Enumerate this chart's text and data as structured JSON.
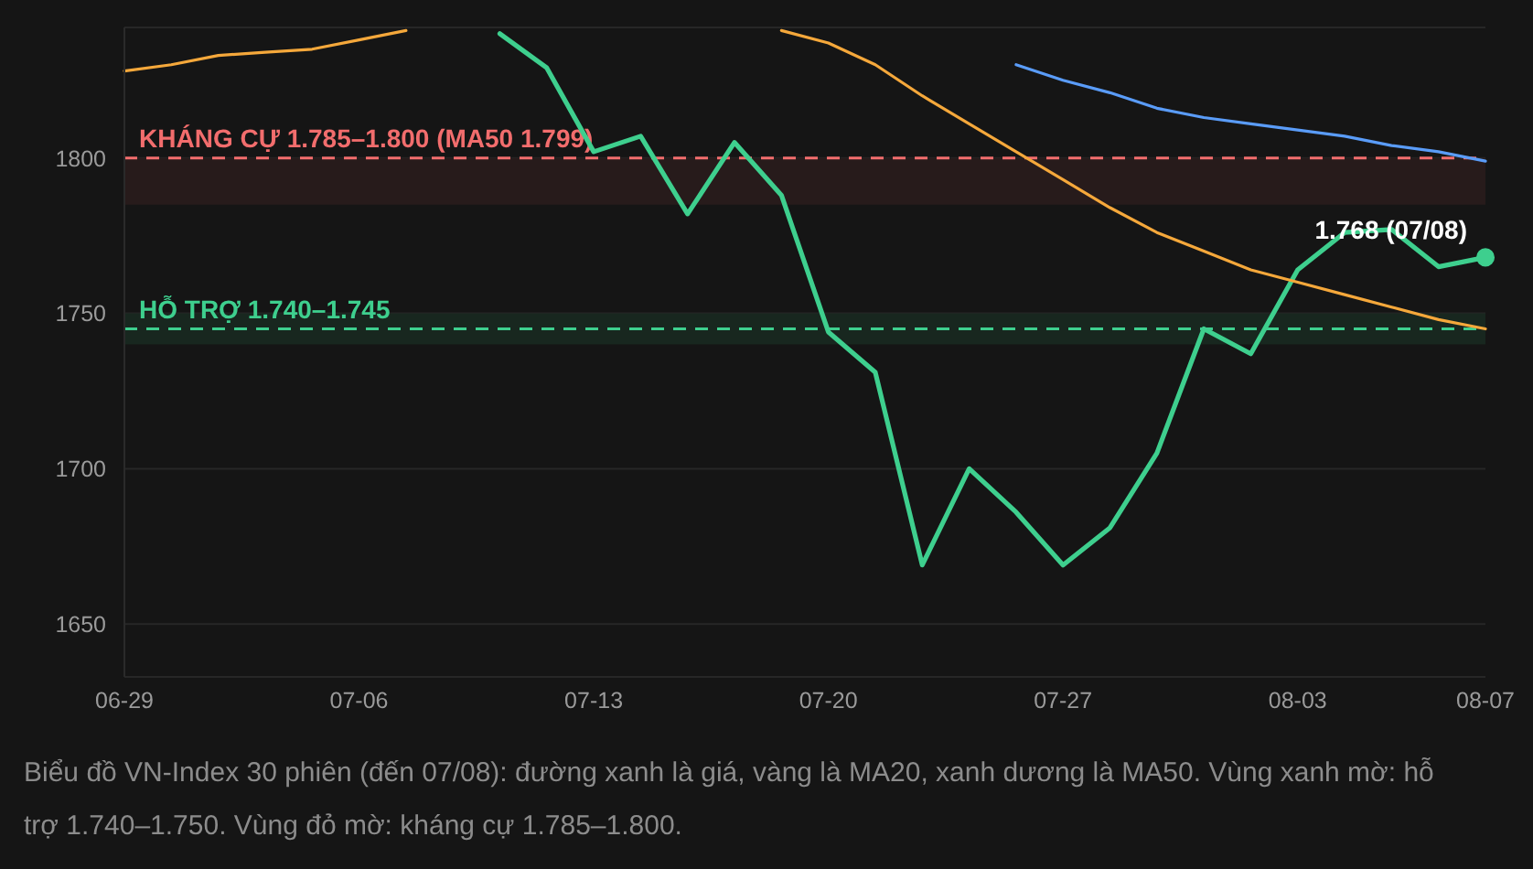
{
  "chart_data": {
    "type": "line",
    "categories": [
      "06-29",
      null,
      null,
      null,
      null,
      "07-06",
      null,
      null,
      null,
      null,
      "07-13",
      null,
      null,
      null,
      null,
      "07-20",
      null,
      null,
      null,
      null,
      "07-27",
      null,
      null,
      null,
      null,
      "08-03",
      null,
      null,
      null,
      "08-07"
    ],
    "series": [
      {
        "color": "#3ecf8e",
        "values": [
          null,
          null,
          null,
          null,
          null,
          null,
          null,
          null,
          1840,
          1829,
          1802,
          1807,
          1782,
          1805,
          1788,
          1744,
          1731,
          1669,
          1700,
          1686,
          1669,
          1681,
          1705,
          1745,
          1737,
          1764,
          1776,
          1777,
          1765,
          1768
        ]
      },
      {
        "color": "#f5a83b",
        "values": [
          1828,
          1830,
          1833,
          1834,
          1835,
          1838,
          1841,
          null,
          null,
          null,
          null,
          null,
          null,
          null,
          1841,
          1837,
          1830,
          1820,
          1811,
          1802,
          1793,
          1784,
          1776,
          1770,
          1764,
          1760,
          1756,
          1752,
          1748,
          1745
        ]
      },
      {
        "color": "#5a9cf8",
        "values": [
          null,
          null,
          null,
          null,
          null,
          null,
          null,
          null,
          null,
          null,
          null,
          null,
          null,
          null,
          null,
          null,
          null,
          null,
          null,
          1830,
          1825,
          1821,
          1816,
          1813,
          1811,
          1809,
          1807,
          1804,
          1802,
          1799
        ]
      },
      {
        "type": "scatter",
        "color": "#3ecf8e",
        "marker": "circle",
        "values": [
          null,
          null,
          null,
          null,
          null,
          null,
          null,
          null,
          null,
          null,
          null,
          null,
          null,
          null,
          null,
          null,
          null,
          null,
          null,
          null,
          null,
          null,
          null,
          null,
          null,
          null,
          null,
          null,
          null,
          1768
        ]
      }
    ],
    "ylim": [
      1633,
      1842
    ],
    "yticks": [
      1650,
      1700,
      1750,
      1800
    ],
    "grid": "y",
    "bands": [
      {
        "axis": "y",
        "from": 1785,
        "to": 1800,
        "color": "#271b1b"
      },
      {
        "axis": "y",
        "from": 1740,
        "to": 1750,
        "color": "#18271f"
      }
    ],
    "ref_lines": [
      {
        "axis": "y",
        "value": 1800,
        "label": "KHÁNG CỰ 1.785–1.800 (MA50 1.799)",
        "color": "#f26d6d",
        "line_style": "dashed"
      },
      {
        "axis": "y",
        "value": 1745,
        "label": "HỖ TRỢ 1.740–1.745",
        "color": "#3ecf8e",
        "line_style": "dashed"
      }
    ],
    "annotations": [
      {
        "text": "1.768 (07/08)",
        "x": "08-07",
        "y": 1768
      },
      "Biểu đồ VN-Index 30 phiên (đến 07/08): đường xanh là giá, vàng là MA20, xanh dương là MA50. Vùng xanh mờ: hỗ trợ 1.740–1.750. Vùng đỏ mờ: kháng cự 1.785–1.800."
    ]
  }
}
